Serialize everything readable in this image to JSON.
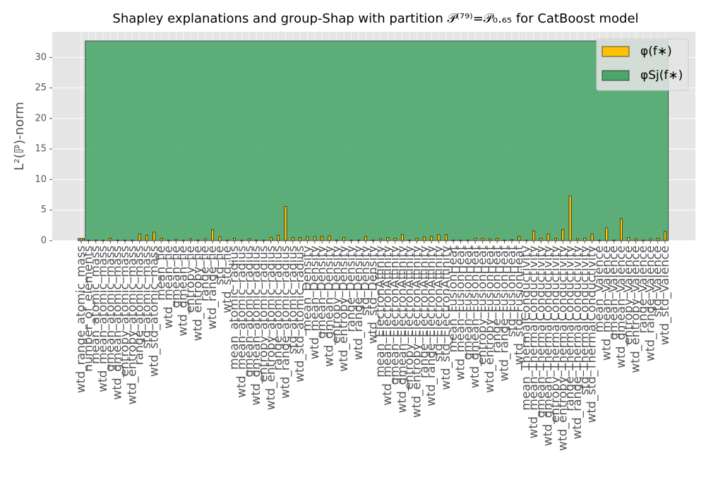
{
  "chart_data": {
    "type": "group-bar",
    "title": "Shapley explanations and group-Shap with partition 𝒫⁽⁷⁹⁾=𝒫₀.₆₅ for CatBoost model",
    "ylabel": "L²(ℙ)-norm",
    "categories": [
      "wtd_range_atomic_mass",
      "number_of_elements",
      "mean_atomic_mass",
      "wtd_mean_atomic_mass",
      "gmean_atomic_mass",
      "wtd_gmean_atomic_mass",
      "entropy_atomic_mass",
      "wtd_entropy_atomic_mass",
      "range_atomic_mass",
      "std_atomic_mass",
      "wtd_std_atomic_mass",
      "mean_fie",
      "wtd_mean_fie",
      "gmean_fie",
      "wtd_gmean_fie",
      "entropy_fie",
      "wtd_entropy_fie",
      "range_fie",
      "wtd_range_fie",
      "std_fie",
      "wtd_std_fie",
      "mean_atomic_radius",
      "wtd_mean_atomic_radius",
      "gmean_atomic_radius",
      "wtd_gmean_atomic_radius",
      "entropy_atomic_radius",
      "wtd_entropy_atomic_radius",
      "range_atomic_radius",
      "wtd_range_atomic_radius",
      "std_atomic_radius",
      "wtd_std_atomic_radius",
      "mean_Density",
      "wtd_mean_Density",
      "gmean_Density",
      "wtd_gmean_Density",
      "entropy_Density",
      "wtd_entropy_Density",
      "range_Density",
      "wtd_range_Density",
      "std_Density",
      "wtd_std_Density",
      "mean_ElectronAffinity",
      "wtd_mean_ElectronAffinity",
      "gmean_ElectronAffinity",
      "wtd_gmean_ElectronAffinity",
      "entropy_ElectronAffinity",
      "wtd_entropy_ElectronAffinity",
      "range_ElectronAffinity",
      "wtd_range_ElectronAffinity",
      "std_ElectronAffinity",
      "wtd_std_ElectronAffinity",
      "mean_FusionHeat",
      "wtd_mean_FusionHeat",
      "gmean_FusionHeat",
      "wtd_gmean_FusionHeat",
      "entropy_FusionHeat",
      "wtd_entropy_FusionHeat",
      "range_FusionHeat",
      "wtd_range_FusionHeat",
      "std_FusionHeat",
      "wtd_std_FusionHeat",
      "mean_ThermalConductivity",
      "wtd_mean_ThermalConductivity",
      "gmean_ThermalConductivity",
      "wtd_gmean_ThermalConductivity",
      "entropy_ThermalConductivity",
      "wtd_entropy_ThermalConductivity",
      "range_ThermalConductivity",
      "wtd_range_ThermalConductivity",
      "std_ThermalConductivity",
      "wtd_std_ThermalConductivity",
      "mean_Valence",
      "wtd_mean_Valence",
      "gmean_Valence",
      "wtd_gmean_Valence",
      "entropy_Valence",
      "wtd_entropy_Valence",
      "range_Valence",
      "wtd_range_Valence",
      "std_Valence",
      "wtd_std_Valence"
    ],
    "series": [
      {
        "name": "φ(f∗)",
        "color": "#ffc107",
        "values": [
          0.35,
          0.1,
          0.1,
          0.1,
          0.4,
          0.1,
          0.1,
          0.1,
          1.1,
          0.9,
          1.4,
          0.4,
          0.1,
          0.2,
          0.1,
          0.3,
          0.1,
          0.3,
          1.8,
          0.6,
          0.1,
          0.4,
          0.1,
          0.3,
          0.1,
          0.1,
          0.5,
          0.9,
          5.6,
          0.5,
          0.5,
          0.6,
          0.7,
          0.7,
          0.8,
          0.1,
          0.5,
          0.1,
          0.1,
          0.7,
          0.1,
          0.3,
          0.5,
          0.4,
          1.0,
          0.1,
          0.4,
          0.6,
          0.7,
          1.0,
          1.0,
          0.1,
          0.1,
          0.1,
          0.4,
          0.4,
          0.3,
          0.4,
          0.1,
          0.2,
          0.7,
          0.1,
          1.6,
          0.4,
          1.1,
          0.4,
          1.8,
          7.3,
          0.3,
          0.4,
          1.1,
          0.1,
          2.1,
          0.1,
          3.6,
          0.5,
          0.3,
          0.1,
          0.3,
          0.4,
          1.5
        ]
      },
      {
        "name": "φSj(f∗)",
        "color": "#4ca66b",
        "groups": [
          {
            "start": 0,
            "end": 0,
            "value": 0.35
          },
          {
            "start": 1,
            "end": 80,
            "value": 32.7
          }
        ]
      }
    ],
    "ylim": [
      0,
      34.2
    ],
    "yticks": [
      0,
      5,
      10,
      15,
      20,
      25,
      30
    ],
    "grid": true,
    "legend": "upper right"
  }
}
